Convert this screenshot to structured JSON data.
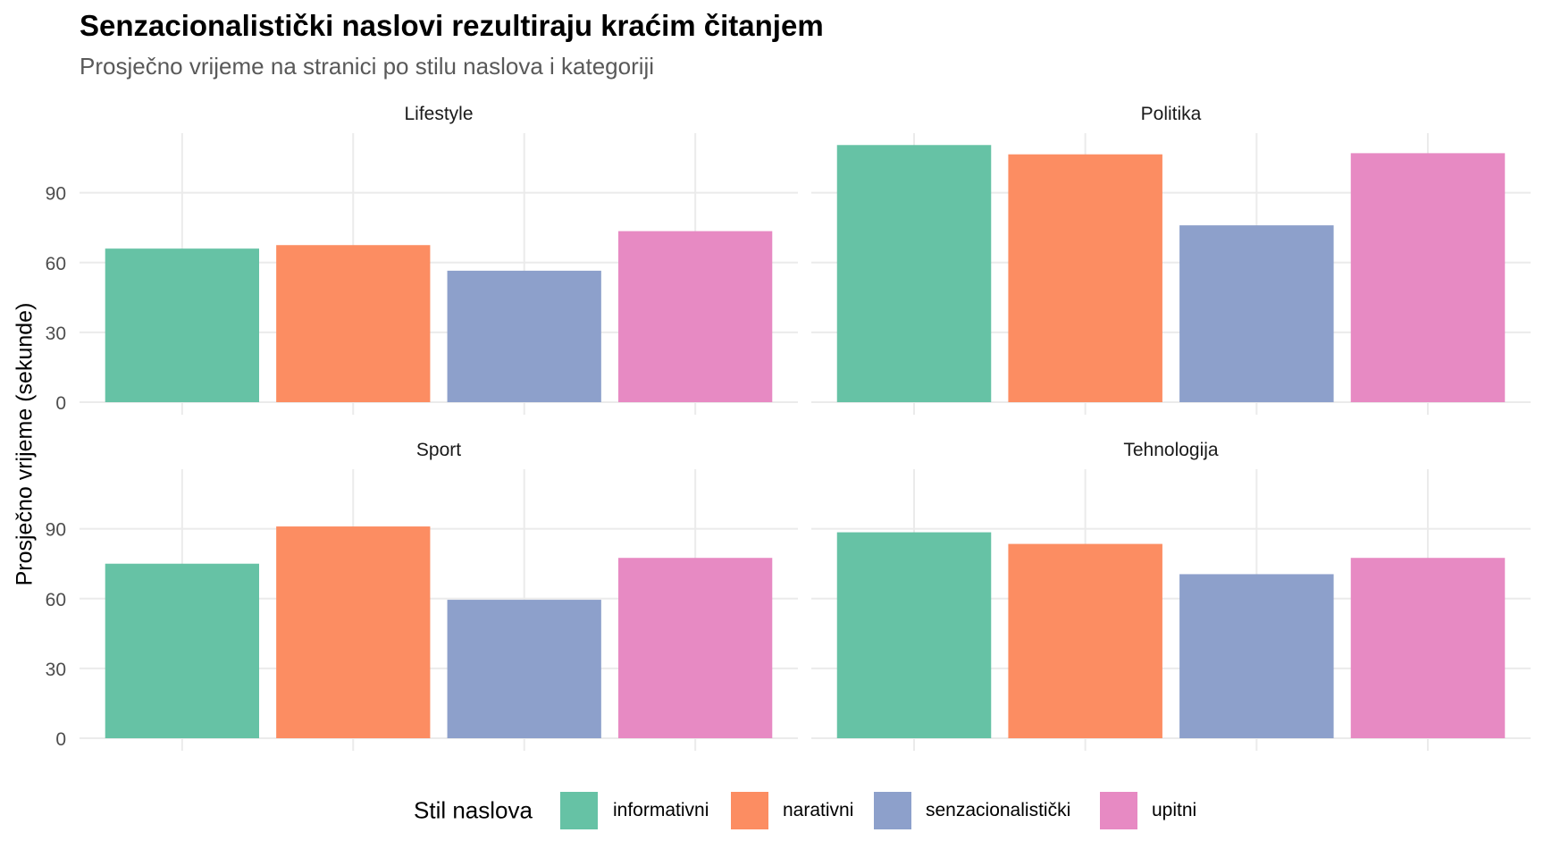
{
  "chart_data": {
    "type": "bar",
    "title": "Senzacionalistički naslovi rezultiraju kraćim čitanjem",
    "subtitle": "Prosječno vrijeme na stranici po stilu naslova i kategoriji",
    "xlabel": "",
    "ylabel": "Prosječno vrijeme (sekunde)",
    "ylim": [
      0,
      115
    ],
    "yticks": [
      "0",
      "30",
      "60",
      "90"
    ],
    "ytick_values": [
      0,
      30,
      60,
      90
    ],
    "grid": true,
    "legend_position": "bottom",
    "legend_title": "Stil naslova",
    "categories": [
      "informativni",
      "narativni",
      "senzacionalistički",
      "upitni"
    ],
    "colors": [
      "#66c2a5",
      "#fc8d62",
      "#8da0cb",
      "#e78ac3"
    ],
    "facets": [
      {
        "name": "Lifestyle",
        "values": [
          66,
          67.5,
          56.5,
          73.5
        ]
      },
      {
        "name": "Politika",
        "values": [
          110.5,
          106.5,
          76,
          107
        ]
      },
      {
        "name": "Sport",
        "values": [
          75,
          91,
          59.5,
          77.5
        ]
      },
      {
        "name": "Tehnologija",
        "values": [
          88.5,
          83.5,
          70.5,
          77.5
        ]
      }
    ]
  }
}
